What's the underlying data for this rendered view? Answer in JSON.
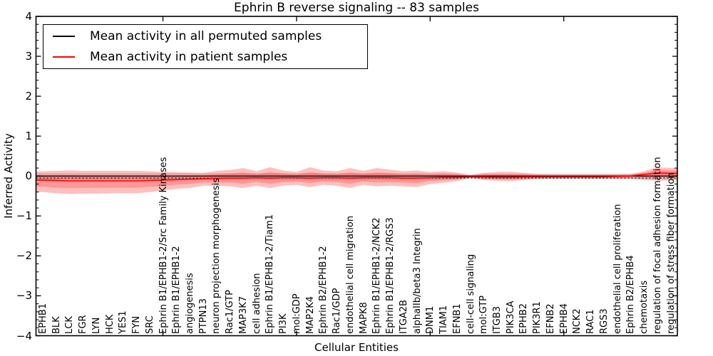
{
  "chart_data": {
    "type": "line",
    "title": "Ephrin B reverse signaling -- 83 samples",
    "xlabel": "Cellular Entities",
    "ylabel": "Inferred Activity",
    "ylim": [
      -4,
      4
    ],
    "yticks": [
      4,
      3,
      2,
      1,
      0,
      -1,
      -2,
      -3,
      -4
    ],
    "y_minor_step": 0.2,
    "x_major_ticks": [
      10,
      20,
      30,
      40
    ],
    "grid": false,
    "legend_position": "upper left",
    "sample_count_in_title": 83,
    "categories": [
      "EPHB1",
      "BLK",
      "LCK",
      "FGR",
      "LYN",
      "HCK",
      "YES1",
      "FYN",
      "SRC",
      "Ephrin B1/EPHB1-2/Src Family Kinases",
      "Ephrin B1/EPHB1-2",
      "angiogenesis",
      "PTPN13",
      "neuron projection morphogenesis",
      "Rac1/GTP",
      "MAP3K7",
      "cell adhesion",
      "Ephrin B1/EPHB1-2/Tiam1",
      "PI3K",
      "mol:GDP",
      "MAP2K4",
      "Ephrin B2/EPHB1-2",
      "Rac1/GDP",
      "endothelial cell migration",
      "MAPK8",
      "Ephrin B1/EPHB1-2/NCK2",
      "Ephrin B1/EPHB1-2/RGS3",
      "ITGA2B",
      "alphaIIb/beta3 Integrin",
      "DNM1",
      "TIAM1",
      "EFNB1",
      "cell-cell signaling",
      "mol:GTP",
      "ITGB3",
      "PIK3CA",
      "EPHB2",
      "PIK3R1",
      "EFNB2",
      "EPHB4",
      "NCK2",
      "RAC1",
      "RGS3",
      "endothelial cell proliferation",
      "Ephrin B2/EPHB4",
      "chemotaxis",
      "regulation of focal adhesion formation",
      "regulation of stress fiber formation"
    ],
    "series": [
      {
        "name": "Mean activity in all permuted samples",
        "color": "#000000",
        "style": "solid",
        "in_legend": true,
        "constant_value": 0.0
      },
      {
        "name": "Permuted baseline (dotted)",
        "color": "#000000",
        "style": "dotted",
        "in_legend": false,
        "constant_value": -0.05
      },
      {
        "name": "Mean activity in patient samples",
        "color": "#ff0000",
        "style": "solid",
        "in_legend": true,
        "values": [
          -0.1,
          -0.11,
          -0.12,
          -0.12,
          -0.12,
          -0.12,
          -0.12,
          -0.12,
          -0.11,
          -0.1,
          -0.09,
          -0.08,
          -0.07,
          -0.06,
          -0.05,
          -0.05,
          -0.04,
          -0.05,
          -0.04,
          -0.04,
          -0.05,
          -0.04,
          -0.04,
          -0.05,
          -0.04,
          -0.04,
          -0.04,
          -0.05,
          -0.05,
          -0.04,
          -0.03,
          -0.03,
          -0.02,
          -0.02,
          -0.03,
          -0.03,
          -0.02,
          -0.02,
          -0.02,
          -0.02,
          -0.02,
          -0.02,
          -0.02,
          -0.01,
          0.0,
          0.04,
          0.08,
          0.07
        ]
      }
    ],
    "bands": [
      {
        "name": "permuted-samples-band",
        "color": "#aaaaaa",
        "opacity": 0.35,
        "upper": [
          0.07,
          0.07,
          0.07,
          0.07,
          0.07,
          0.07,
          0.07,
          0.07,
          0.07,
          0.07,
          0.07,
          0.07,
          0.07,
          0.07,
          0.07,
          0.07,
          0.07,
          0.07,
          0.07,
          0.07,
          0.07,
          0.07,
          0.07,
          0.07,
          0.07,
          0.07,
          0.07,
          0.07,
          0.07,
          0.07,
          0.07,
          0.06,
          0.02,
          0.06,
          0.06,
          0.06,
          0.06,
          0.06,
          0.06,
          0.06,
          0.06,
          0.06,
          0.06,
          0.06,
          0.06,
          0.06,
          0.06,
          0.06
        ],
        "lower": [
          -0.09,
          -0.09,
          -0.09,
          -0.09,
          -0.09,
          -0.09,
          -0.09,
          -0.09,
          -0.09,
          -0.09,
          -0.09,
          -0.09,
          -0.09,
          -0.09,
          -0.09,
          -0.09,
          -0.09,
          -0.09,
          -0.09,
          -0.09,
          -0.09,
          -0.09,
          -0.09,
          -0.09,
          -0.09,
          -0.09,
          -0.09,
          -0.09,
          -0.09,
          -0.09,
          -0.09,
          -0.08,
          -0.03,
          -0.08,
          -0.08,
          -0.08,
          -0.08,
          -0.08,
          -0.08,
          -0.08,
          -0.08,
          -0.08,
          -0.08,
          -0.08,
          -0.08,
          -0.08,
          -0.08,
          -0.08
        ]
      },
      {
        "name": "patient-samples-band",
        "color": "#ff0000",
        "opacity": 0.25,
        "inner_band_factor": 0.55,
        "inner_band_opacity": 0.22,
        "upper": [
          0.12,
          0.13,
          0.14,
          0.13,
          0.13,
          0.13,
          0.13,
          0.13,
          0.12,
          0.1,
          0.1,
          0.09,
          0.08,
          0.13,
          0.15,
          0.2,
          0.12,
          0.22,
          0.14,
          0.1,
          0.22,
          0.14,
          0.12,
          0.2,
          0.13,
          0.2,
          0.16,
          0.12,
          0.14,
          0.1,
          0.12,
          0.09,
          0.03,
          0.08,
          0.1,
          0.11,
          0.08,
          0.05,
          0.04,
          0.04,
          0.04,
          0.04,
          0.04,
          0.04,
          0.05,
          0.12,
          0.22,
          0.2
        ],
        "lower": [
          -0.4,
          -0.43,
          -0.45,
          -0.44,
          -0.44,
          -0.43,
          -0.43,
          -0.43,
          -0.4,
          -0.36,
          -0.32,
          -0.3,
          -0.24,
          -0.24,
          -0.26,
          -0.3,
          -0.24,
          -0.3,
          -0.24,
          -0.22,
          -0.28,
          -0.22,
          -0.24,
          -0.3,
          -0.22,
          -0.26,
          -0.24,
          -0.26,
          -0.28,
          -0.2,
          -0.17,
          -0.13,
          -0.05,
          -0.1,
          -0.12,
          -0.13,
          -0.1,
          -0.07,
          -0.06,
          -0.06,
          -0.06,
          -0.06,
          -0.06,
          -0.06,
          -0.06,
          -0.1,
          -0.12,
          -0.11
        ]
      }
    ],
    "axis_color": "#000000"
  }
}
